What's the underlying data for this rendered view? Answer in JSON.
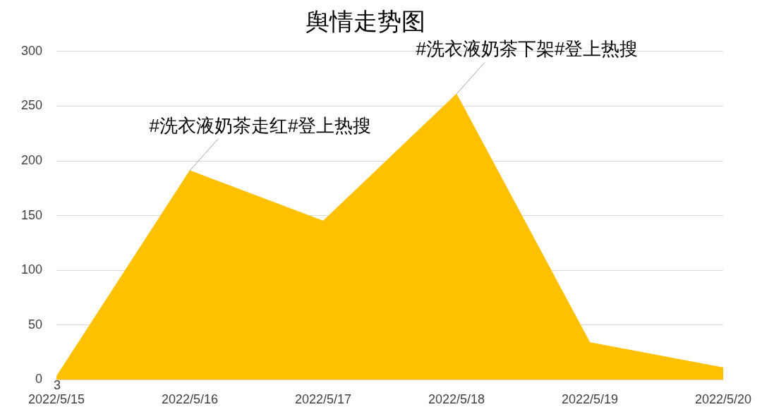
{
  "chart_data": {
    "type": "area",
    "title": "舆情走势图",
    "categories": [
      "2022/5/15",
      "2022/5/16",
      "2022/5/17",
      "2022/5/18",
      "2022/5/19",
      "2022/5/20"
    ],
    "values": [
      3,
      191,
      145,
      261,
      34,
      11
    ],
    "value_labels": [
      "3",
      null,
      null,
      null,
      null,
      null
    ],
    "color": "#ffc000",
    "ylim": [
      0,
      300
    ],
    "yticks": [
      0,
      50,
      100,
      150,
      200,
      250,
      300
    ],
    "grid": "y",
    "legend": false,
    "annotations": [
      {
        "text": "#洗衣液奶茶走红#登上热搜",
        "x": "2022/5/16",
        "y": 191
      },
      {
        "text": "#洗衣液奶茶下架#登上热搜",
        "x": "2022/5/18",
        "y": 261
      }
    ]
  }
}
